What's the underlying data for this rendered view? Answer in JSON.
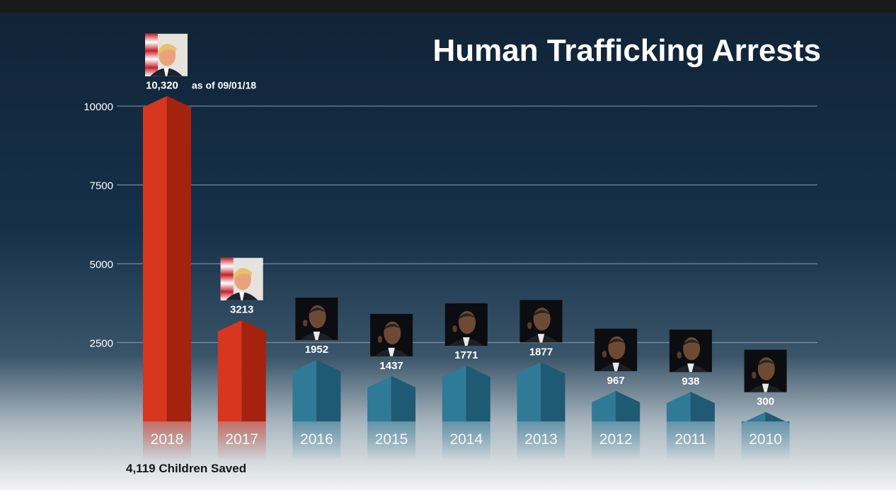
{
  "chart_data": {
    "type": "bar",
    "title": "Human Trafficking Arrests",
    "categories": [
      "2018",
      "2017",
      "2016",
      "2015",
      "2014",
      "2013",
      "2012",
      "2011",
      "2010"
    ],
    "values": [
      10320,
      3213,
      1952,
      1437,
      1771,
      1877,
      967,
      938,
      300
    ],
    "value_labels": [
      "10,320",
      "3213",
      "1952",
      "1437",
      "1771",
      "1877",
      "967",
      "938",
      "300"
    ],
    "first_label_suffix": "as of 09/01/18",
    "yticks": [
      10000,
      7500,
      5000,
      2500
    ],
    "ylim": [
      0,
      10320
    ],
    "xlabel": "",
    "ylabel": "",
    "grid": true,
    "footnote": "4,119 Children Saved",
    "series_colors": {
      "highlight": "#d8361e",
      "highlight_dark": "#a5220f",
      "other": "#2f7a97",
      "other_dark": "#1f5a74"
    },
    "portrait_subjects": [
      "trump",
      "trump",
      "obama",
      "obama",
      "obama",
      "obama",
      "obama",
      "obama",
      "obama"
    ],
    "highlight_count": 2
  }
}
